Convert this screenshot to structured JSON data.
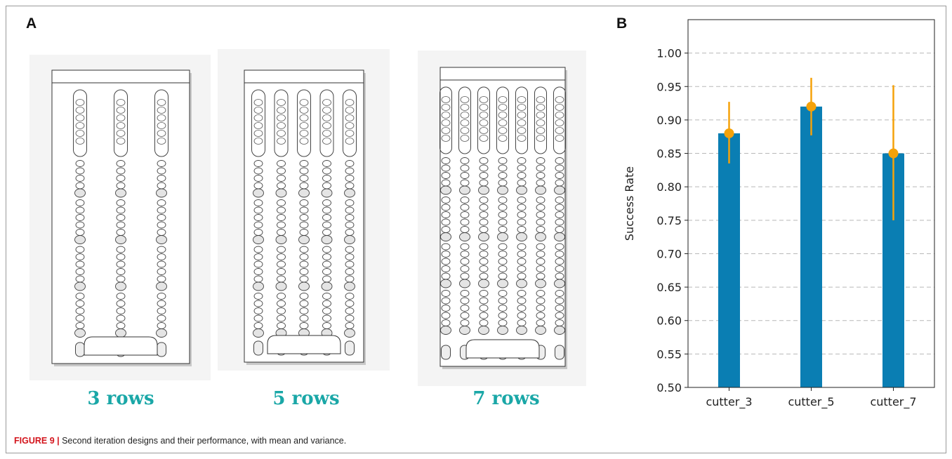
{
  "panels": {
    "a_label": "A",
    "b_label": "B"
  },
  "designs": [
    {
      "label": "3 rows",
      "columns": 3
    },
    {
      "label": "5 rows",
      "columns": 5
    },
    {
      "label": "7 rows",
      "columns": 7
    }
  ],
  "caption": {
    "figure": "FIGURE 9 |",
    "text": " Second iteration designs and their performance, with mean and variance."
  },
  "colors": {
    "bar": "#0a7eb3",
    "errorbar": "#f5a20a",
    "design_label": "#1aa7a7",
    "figure_label": "#d3141c"
  },
  "chart_data": {
    "type": "bar",
    "categories": [
      "cutter_3",
      "cutter_5",
      "cutter_7"
    ],
    "values": [
      0.88,
      0.92,
      0.85
    ],
    "error_low": [
      0.835,
      0.877,
      0.75
    ],
    "error_high": [
      0.927,
      0.963,
      0.952
    ],
    "ylabel": "Success Rate",
    "ylim": [
      0.5,
      1.05
    ],
    "yticks": [
      "0.50",
      "0.55",
      "0.60",
      "0.65",
      "0.70",
      "0.75",
      "0.80",
      "0.85",
      "0.90",
      "0.95",
      "1.00"
    ],
    "grid": "horizontal dashed"
  }
}
